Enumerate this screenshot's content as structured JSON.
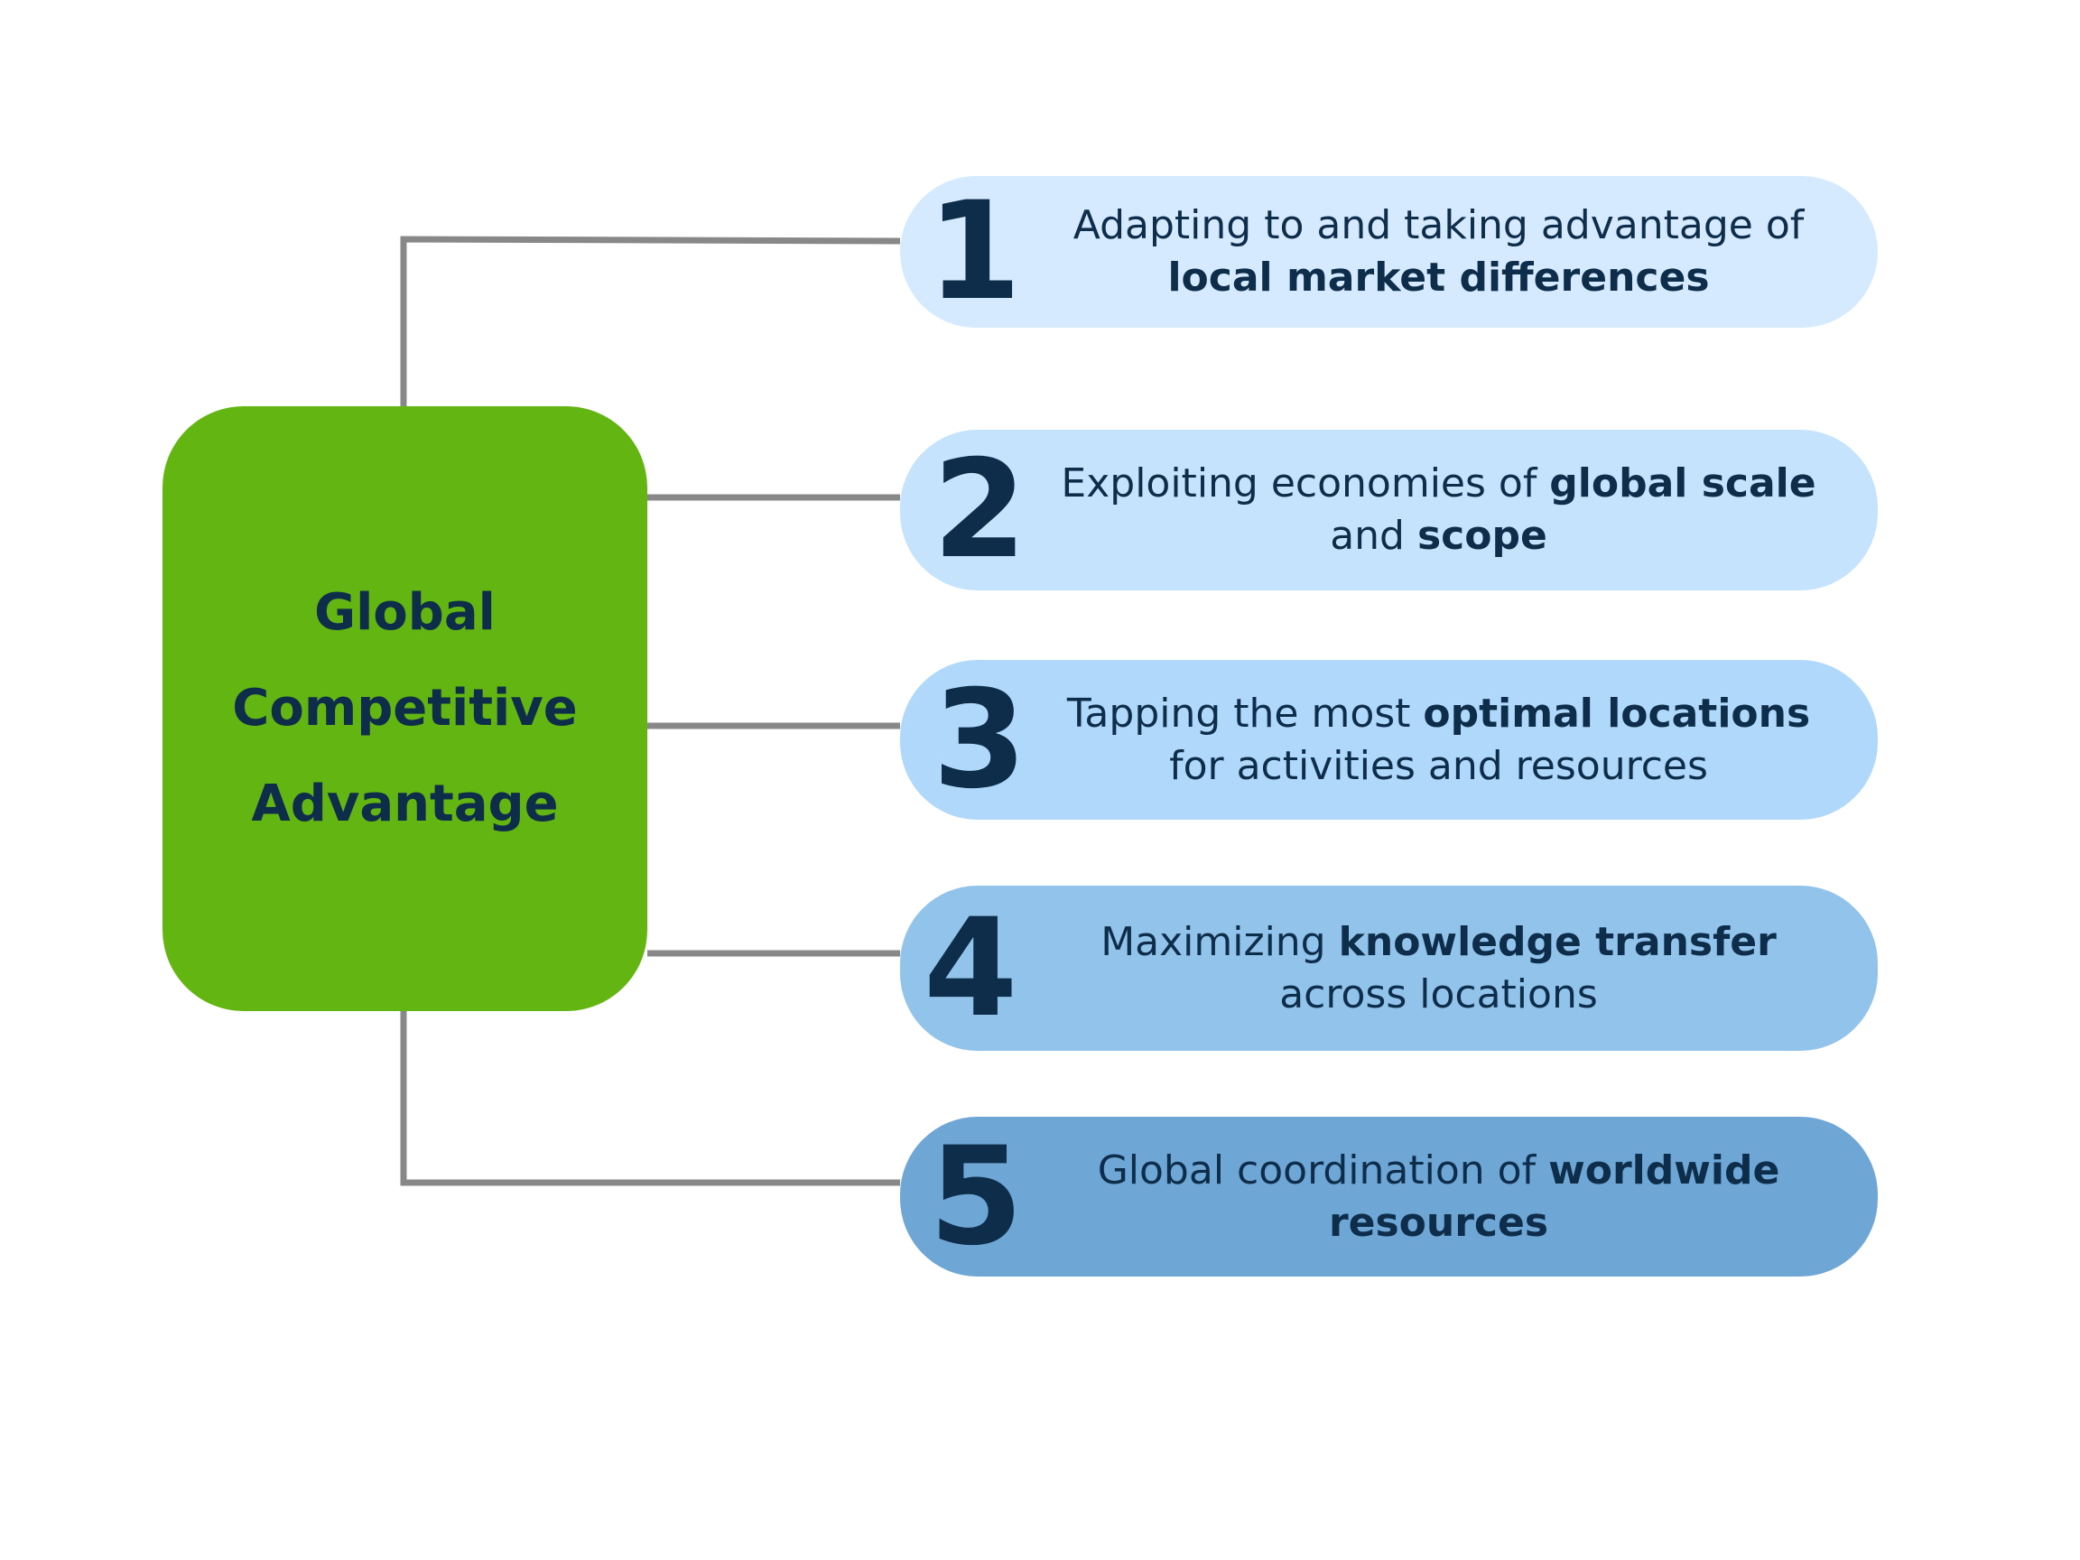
{
  "center": {
    "title_line1": "Global",
    "title_line2": "Competitive",
    "title_line3": "Advantage",
    "color": "#63b512"
  },
  "connector_color": "#888888",
  "text_color": "#0e2d4a",
  "items": [
    {
      "number": "1",
      "text_a": "Adapting to and taking advantage of ",
      "bold_a": "local market differences",
      "text_b": "",
      "bold_b": "",
      "color": "#d6eaff"
    },
    {
      "number": "2",
      "text_a": "Exploiting economies of ",
      "bold_a": "global scale",
      "text_b": " and ",
      "bold_b": "scope",
      "color": "#c6e3fd"
    },
    {
      "number": "3",
      "text_a": "Tapping the most ",
      "bold_a": "optimal locations",
      "text_b": " for activities and resources",
      "bold_b": "",
      "color": "#afd8fb"
    },
    {
      "number": "4",
      "text_a": "Maximizing ",
      "bold_a": "knowledge transfer",
      "text_b": " across locations",
      "bold_b": "",
      "color": "#92c3eb"
    },
    {
      "number": "5",
      "text_a": "Global coordination of ",
      "bold_a": "worldwide resources",
      "text_b": "",
      "bold_b": "",
      "color": "#6ea6d6"
    }
  ]
}
